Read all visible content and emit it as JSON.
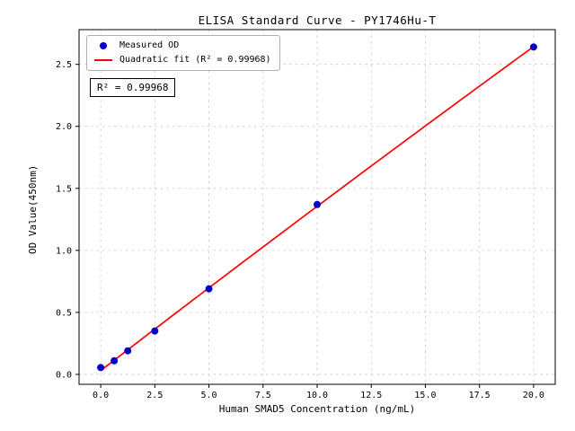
{
  "figure": {
    "background": "#ffffff"
  },
  "annotation": {
    "text": "R² = 0.99968"
  },
  "chart_data": {
    "type": "scatter",
    "title": "ELISA Standard Curve - PY1746Hu-T",
    "xlabel": "Human SMAD5 Concentration (ng/mL)",
    "ylabel": "OD Value(450nm)",
    "xlim": [
      -1.0,
      21.0
    ],
    "ylim": [
      -0.08,
      2.78
    ],
    "grid": true,
    "grid_style": "dashed",
    "grid_color": "#c8c8c8",
    "legend_position": "upper left",
    "x_ticks": [
      0.0,
      2.5,
      5.0,
      7.5,
      10.0,
      12.5,
      15.0,
      17.5,
      20.0
    ],
    "x_tick_labels": [
      "0.0",
      "2.5",
      "5.0",
      "7.5",
      "10.0",
      "12.5",
      "15.0",
      "17.5",
      "20.0"
    ],
    "y_ticks": [
      0.0,
      0.5,
      1.0,
      1.5,
      2.0,
      2.5
    ],
    "y_tick_labels": [
      "0.0",
      "0.5",
      "1.0",
      "1.5",
      "2.0",
      "2.5"
    ],
    "series": [
      {
        "name": "Measured OD",
        "type": "scatter",
        "color": "#0000cd",
        "x": [
          0.0,
          0.625,
          1.25,
          2.5,
          5.0,
          10.0,
          20.0
        ],
        "y": [
          0.055,
          0.11,
          0.19,
          0.35,
          0.69,
          1.37,
          2.64
        ]
      },
      {
        "name": "Quadratic fit (R² = 0.99968)",
        "type": "line",
        "color": "#ff0000",
        "fit": "quadratic",
        "r_squared": 0.99968
      }
    ],
    "annotation": "R² = 0.99968"
  }
}
